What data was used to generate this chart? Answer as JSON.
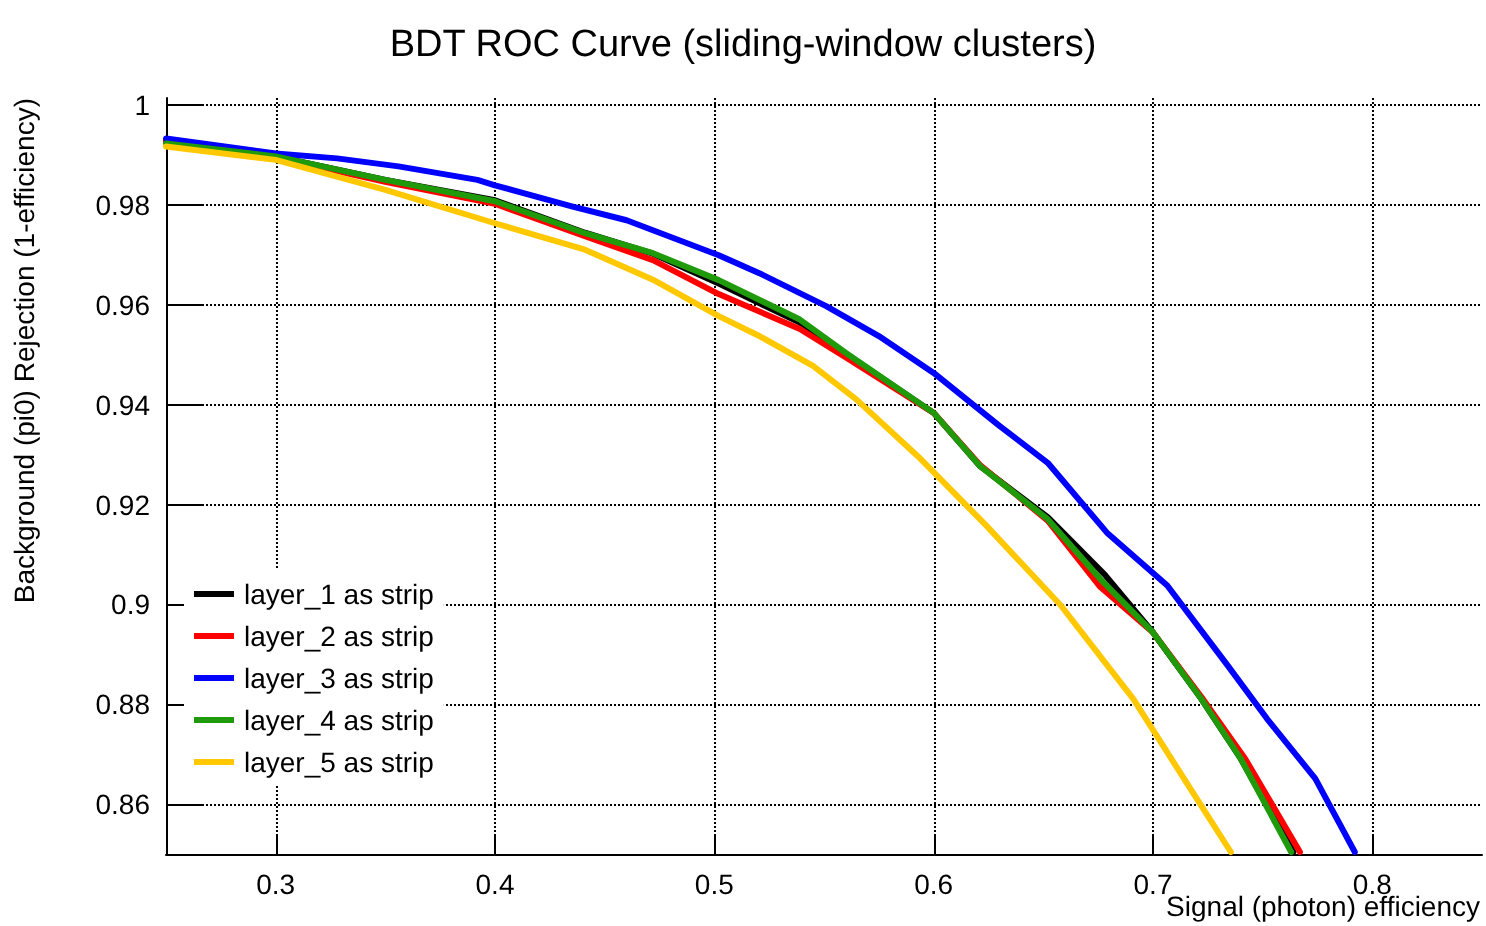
{
  "chart_data": {
    "type": "line",
    "title": "BDT ROC Curve (sliding-window clusters)",
    "xlabel": "Signal (photon) efficiency",
    "ylabel": "Background (pi0) Rejection (1-efficiency)",
    "xlim": [
      0.25,
      0.85
    ],
    "xticks": [
      0.3,
      0.4,
      0.5,
      0.6,
      0.7,
      0.8
    ],
    "ylim": [
      0.85,
      1.0015
    ],
    "yticks": [
      0.86,
      0.88,
      0.9,
      0.92,
      0.94,
      0.96,
      0.98,
      1
    ],
    "grid": true,
    "legend": "bottom left",
    "marker": "none",
    "line_style": "solid",
    "series": [
      {
        "name": "layer_1 as strip",
        "color": "#000000",
        "x": [
          0.25,
          0.3,
          0.35,
          0.4,
          0.441,
          0.472,
          0.502,
          0.539,
          0.56,
          0.6,
          0.621,
          0.652,
          0.678,
          0.7,
          0.722,
          0.74,
          0.764
        ],
        "values": [
          0.993,
          0.9898,
          0.9851,
          0.981,
          0.9745,
          0.9703,
          0.9643,
          0.9565,
          0.9502,
          0.9384,
          0.9278,
          0.9175,
          0.906,
          0.8944,
          0.8811,
          0.8691,
          0.8504
        ]
      },
      {
        "name": "layer_2 as strip",
        "color": "#ff0000",
        "x": [
          0.25,
          0.3,
          0.35,
          0.4,
          0.441,
          0.472,
          0.502,
          0.539,
          0.56,
          0.6,
          0.621,
          0.652,
          0.676,
          0.7,
          0.722,
          0.742,
          0.767
        ],
        "values": [
          0.9928,
          0.9896,
          0.9847,
          0.9803,
          0.9738,
          0.969,
          0.9622,
          0.9552,
          0.9495,
          0.9384,
          0.928,
          0.9168,
          0.9035,
          0.8944,
          0.8815,
          0.8691,
          0.8504
        ]
      },
      {
        "name": "layer_3 as strip",
        "color": "#0000ff",
        "x": [
          0.25,
          0.3,
          0.328,
          0.356,
          0.392,
          0.4,
          0.435,
          0.46,
          0.502,
          0.5205,
          0.551,
          0.575,
          0.6,
          0.63,
          0.652,
          0.679,
          0.7065,
          0.734,
          0.752,
          0.774,
          0.792
        ],
        "values": [
          0.9934,
          0.9904,
          0.9894,
          0.9878,
          0.9851,
          0.984,
          0.9798,
          0.977,
          0.97,
          0.9664,
          0.9598,
          0.9538,
          0.9464,
          0.9358,
          0.9284,
          0.9144,
          0.9038,
          0.8878,
          0.8771,
          0.8651,
          0.8504
        ]
      },
      {
        "name": "layer_4 as strip",
        "color": "#1f9a0b",
        "x": [
          0.25,
          0.3,
          0.35,
          0.4,
          0.441,
          0.472,
          0.502,
          0.539,
          0.56,
          0.6,
          0.621,
          0.652,
          0.676,
          0.7,
          0.722,
          0.74,
          0.763
        ],
        "values": [
          0.9924,
          0.9898,
          0.9851,
          0.9808,
          0.9744,
          0.9704,
          0.965,
          0.9571,
          0.9504,
          0.9384,
          0.9278,
          0.9171,
          0.9051,
          0.8944,
          0.8811,
          0.8691,
          0.8504
        ]
      },
      {
        "name": "layer_5 as strip",
        "color": "#ffc800",
        "x": [
          0.25,
          0.3,
          0.35,
          0.4,
          0.441,
          0.472,
          0.502,
          0.5205,
          0.545,
          0.5647,
          0.594,
          0.624,
          0.658,
          0.691,
          0.716,
          0.7355
        ],
        "values": [
          0.9918,
          0.9891,
          0.9831,
          0.9764,
          0.9711,
          0.9651,
          0.9578,
          0.9538,
          0.9478,
          0.9411,
          0.9292,
          0.9158,
          0.8998,
          0.8811,
          0.8638,
          0.8504
        ]
      }
    ]
  }
}
